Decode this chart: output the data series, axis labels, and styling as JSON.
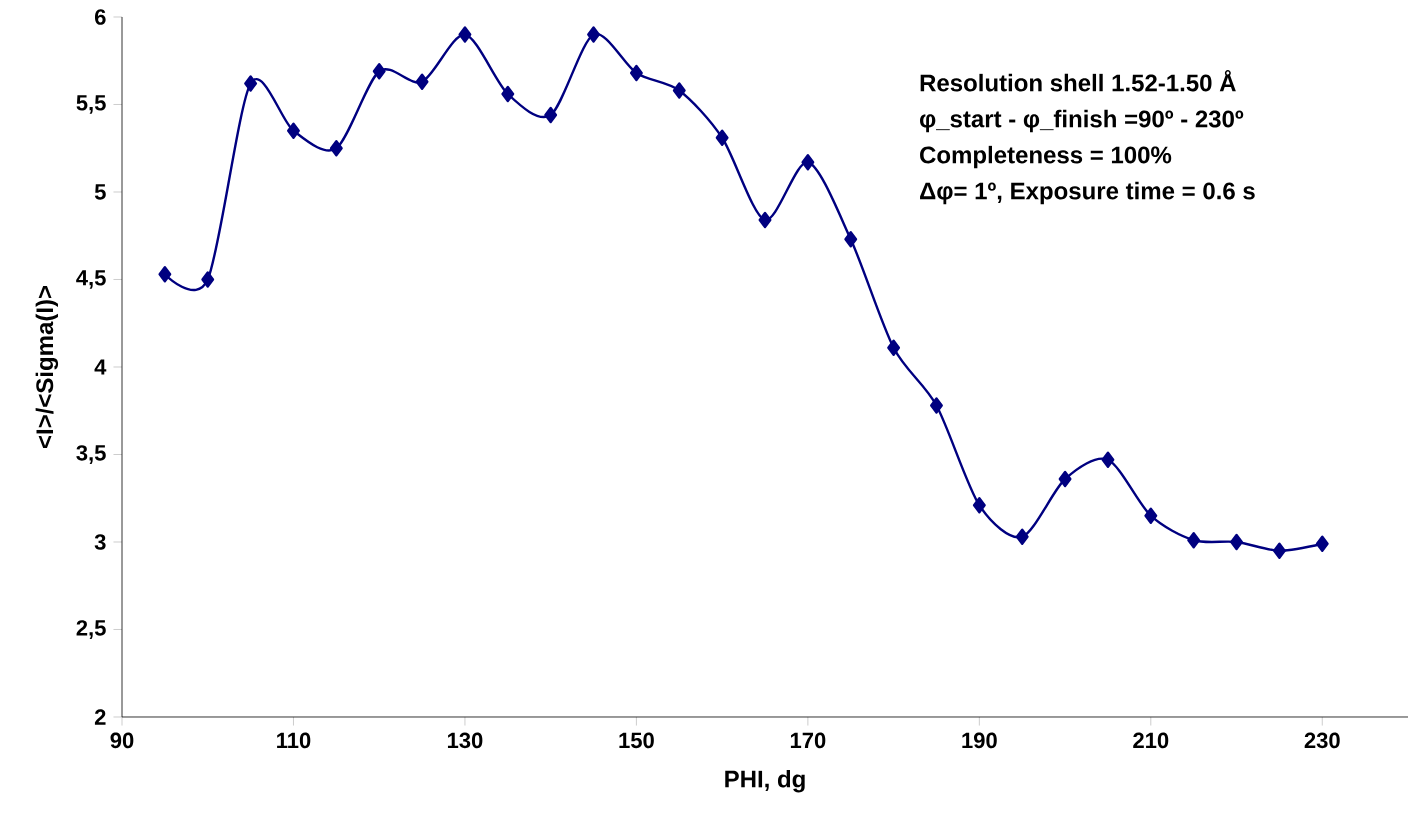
{
  "chart_data": {
    "type": "line",
    "xlabel": "PHI, dg",
    "ylabel": "<I>/<Sigma(I)>",
    "annotations": [
      "Resolution shell 1.52-1.50 Å",
      "φ_start - φ_finish =90º - 230º",
      "Completeness = 100%",
      "Δφ= 1º, Exposure time = 0.6 s"
    ],
    "x": [
      95,
      100,
      105,
      110,
      115,
      120,
      125,
      130,
      135,
      140,
      145,
      150,
      155,
      160,
      165,
      170,
      175,
      180,
      185,
      190,
      195,
      200,
      205,
      210,
      215,
      220,
      225,
      230
    ],
    "series": [
      {
        "color": "#000080",
        "values": [
          4.53,
          4.5,
          5.62,
          5.35,
          5.25,
          5.69,
          5.63,
          5.9,
          5.56,
          5.44,
          5.9,
          5.68,
          5.58,
          5.31,
          4.84,
          5.17,
          4.73,
          4.11,
          3.78,
          3.21,
          3.03,
          3.36,
          3.47,
          3.15,
          3.01,
          3.0,
          2.95,
          2.99
        ]
      }
    ],
    "xlim": [
      90,
      240
    ],
    "ylim": [
      2,
      6
    ],
    "xticks": [
      90,
      110,
      130,
      150,
      170,
      190,
      210,
      230
    ],
    "yticks": [
      2,
      {
        "value": 2.5,
        "label": "2,5"
      },
      3,
      {
        "value": 3.5,
        "label": "3,5"
      },
      4,
      {
        "value": 4.5,
        "label": "4,5"
      },
      5,
      {
        "value": 5.5,
        "label": "5,5"
      },
      6
    ],
    "marker": "diamond",
    "line_style": "solid",
    "grid": false
  }
}
